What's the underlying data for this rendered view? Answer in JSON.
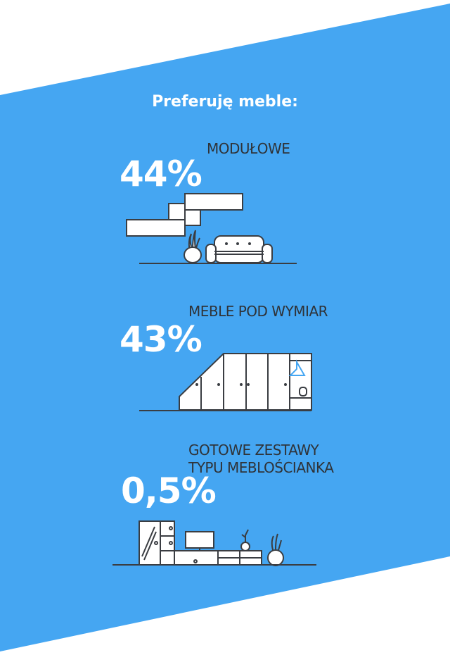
{
  "colors": {
    "accent": "#45a6f2",
    "ink": "#3a3d42",
    "text": "#2f3338",
    "white": "#ffffff"
  },
  "title": "Preferuję meble:",
  "items": [
    {
      "label": "MODUŁOWE",
      "percent": "44%",
      "icon": "modular-furniture-sofa-icon"
    },
    {
      "label": "MEBLE POD WYMIAR",
      "percent": "43%",
      "icon": "custom-wardrobe-icon"
    },
    {
      "label_line1": "GOTOWE ZESTAWY",
      "label_line2": "TYPU MEBLOŚCIANKA",
      "percent": "0,5%",
      "icon": "wall-unit-set-icon"
    }
  ]
}
